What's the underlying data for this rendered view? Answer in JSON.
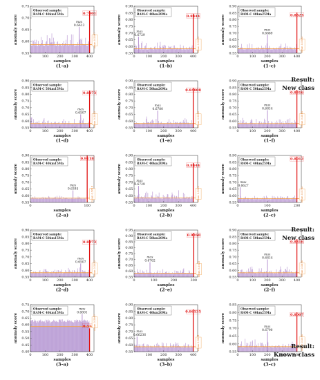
{
  "chart_data": [
    {
      "id": "1a",
      "caption": "(1–a)",
      "type": "bar",
      "sample": "RAM-C 40km15Ma",
      "observed_label": "Observed sample:",
      "ylabel": "anomaly score",
      "xlabel": "samples",
      "ylim": [
        0.55,
        0.75
      ],
      "yticks": [
        0.55,
        0.6,
        0.65,
        0.7,
        0.75
      ],
      "xlim": [
        0,
        430
      ],
      "xticks": [
        0,
        100,
        200,
        300,
        400
      ],
      "mean": 0.5867,
      "mean_label": "mean 0.5867",
      "max": 0.6613,
      "max_x": 330,
      "max_label": "max",
      "max_value_label": "0.6613",
      "obs": 0.7301,
      "obs_x": 400,
      "obs_label": "0.7301",
      "n": 400,
      "bar_hi": 0.64
    },
    {
      "id": "1b",
      "caption": "(1–b)",
      "type": "bar",
      "sample": "RAM-C 40km20Ma",
      "observed_label": "Observed sample:",
      "ylabel": "anomaly score",
      "xlabel": "samples",
      "ylim": [
        0.55,
        0.9
      ],
      "yticks": [
        0.55,
        0.6,
        0.65,
        0.7,
        0.75,
        0.8,
        0.85,
        0.9
      ],
      "xlim": [
        0,
        430
      ],
      "xticks": [
        0,
        100,
        200,
        300,
        400
      ],
      "mean": 0.5829,
      "mean_label": "mean 0.5829",
      "max": 0.6729,
      "max_x": 30,
      "max_label": "max",
      "max_value_label": "0.6729",
      "obs": 0.8444,
      "obs_x": 400,
      "obs_label": "0.8444",
      "n": 400,
      "bar_hi": 0.64
    },
    {
      "id": "1c",
      "caption": "(1–c)",
      "type": "bar",
      "sample": "RAM-C 40km25Ma",
      "observed_label": "Observed sample:",
      "ylabel": "anomaly score",
      "xlabel": "samples",
      "ylim": [
        0.55,
        0.9
      ],
      "yticks": [
        0.55,
        0.6,
        0.65,
        0.7,
        0.75,
        0.8,
        0.85,
        0.9
      ],
      "xlim": [
        0,
        430
      ],
      "xticks": [
        0,
        100,
        200,
        300,
        400
      ],
      "mean": 0.5833,
      "mean_label": "mean 0.5833",
      "max": 0.6869,
      "max_x": 200,
      "max_label": "max",
      "max_value_label": "0.6869",
      "obs": 0.8523,
      "obs_x": 400,
      "obs_label": "0.8523",
      "n": 400,
      "bar_hi": 0.63
    },
    {
      "id": "1d",
      "caption": "(1–d)",
      "type": "bar",
      "sample": "RAM-C 50km15Ma",
      "observed_label": "Observed sample:",
      "ylabel": "anomaly score",
      "xlabel": "samples",
      "ylim": [
        0.55,
        0.9
      ],
      "yticks": [
        0.55,
        0.6,
        0.65,
        0.7,
        0.75,
        0.8,
        0.85,
        0.9
      ],
      "xlim": [
        0,
        430
      ],
      "xticks": [
        0,
        100,
        200,
        300,
        400
      ],
      "mean": 0.5822,
      "mean_label": "mean 0.5822",
      "max": 0.6507,
      "max_x": 340,
      "max_label": "max",
      "max_value_label": "0.6507",
      "obs": 0.8273,
      "obs_x": 400,
      "obs_label": "0.8273",
      "n": 400,
      "bar_hi": 0.63
    },
    {
      "id": "1e",
      "caption": "(1–e)",
      "type": "bar",
      "sample": "RAM-C 50km20Ma",
      "observed_label": "Observed sample:",
      "ylabel": "anomaly score",
      "xlabel": "samples",
      "ylim": [
        0.55,
        0.9
      ],
      "yticks": [
        0.55,
        0.6,
        0.65,
        0.7,
        0.75,
        0.8,
        0.85,
        0.9
      ],
      "xlim": [
        0,
        430
      ],
      "xticks": [
        0,
        100,
        200,
        300,
        400
      ],
      "mean": 0.5822,
      "mean_label": "mean 0.5822",
      "max": 0.678,
      "max_x": 160,
      "max_label": "max",
      "max_value_label": "0.6780",
      "obs": 0.84808,
      "obs_x": 400,
      "obs_label": "0.84808",
      "n": 400,
      "bar_hi": 0.63
    },
    {
      "id": "1f",
      "caption": "(1–f)",
      "type": "bar",
      "sample": "RAM-C 50km25Ma",
      "observed_label": "Observed sample:",
      "ylabel": "anomaly score",
      "xlabel": "samples",
      "ylim": [
        0.55,
        0.9
      ],
      "yticks": [
        0.55,
        0.6,
        0.65,
        0.7,
        0.75,
        0.8,
        0.85,
        0.9
      ],
      "xlim": [
        0,
        430
      ],
      "xticks": [
        0,
        100,
        200,
        300,
        400
      ],
      "mean": 0.5818,
      "mean_label": "mean 0.5818",
      "max": 0.6814,
      "max_x": 200,
      "max_label": "max",
      "max_value_label": "0.6814",
      "obs": 0.8316,
      "obs_x": 400,
      "obs_label": "0.8316",
      "n": 400,
      "bar_hi": 0.63
    },
    {
      "id": "2a",
      "caption": "(2–a)",
      "type": "bar",
      "sample": "RAM-C 40km15Ma",
      "observed_label": "Observed sample:",
      "ylabel": "anomaly score",
      "xlabel": "samples",
      "ylim": [
        0.55,
        0.9
      ],
      "yticks": [
        0.55,
        0.6,
        0.65,
        0.7,
        0.75,
        0.8,
        0.85,
        0.9
      ],
      "xlim": [
        0,
        112
      ],
      "xticks": [
        0,
        100
      ],
      "mean": 0.5818,
      "mean_label": "mean 0.5818",
      "max": 0.6395,
      "max_x": 75,
      "max_label": "max",
      "max_value_label": "0.6395",
      "obs": 0.9118,
      "obs_x": 100,
      "obs_label": "0.9118",
      "n": 100,
      "bar_hi": 0.6
    },
    {
      "id": "2b",
      "caption": "(2–b)",
      "type": "bar",
      "sample": "RAM-C 40km20Ma",
      "observed_label": "Observed sample:",
      "ylabel": "anomaly score",
      "xlabel": "samples",
      "ylim": [
        0.55,
        0.9
      ],
      "yticks": [
        0.55,
        0.6,
        0.65,
        0.7,
        0.75,
        0.8,
        0.85,
        0.9
      ],
      "xlim": [
        0,
        430
      ],
      "xticks": [
        0,
        100,
        200,
        300,
        400
      ],
      "mean": 0.5829,
      "mean_label": "mean 0.5829",
      "max": 0.6729,
      "max_x": 30,
      "max_label": "max",
      "max_value_label": "0.6729",
      "obs": 0.8444,
      "obs_x": 400,
      "obs_label": "0.8444",
      "n": 400,
      "bar_hi": 0.64
    },
    {
      "id": "2c",
      "caption": "(2–c)",
      "type": "bar",
      "sample": "RAM-C 40km25Ma",
      "observed_label": "Observed sample:",
      "ylabel": "anomaly score",
      "xlabel": "samples",
      "ylim": [
        0.55,
        0.9
      ],
      "yticks": [
        0.55,
        0.6,
        0.65,
        0.7,
        0.75,
        0.8,
        0.85,
        0.9
      ],
      "xlim": [
        0,
        215
      ],
      "xticks": [
        0,
        100,
        200
      ],
      "mean": 0.5782,
      "mean_label": "mean 0.5782",
      "max": 0.6627,
      "max_x": 8,
      "max_label": "max",
      "max_value_label": "0.6627",
      "obs": 0.8912,
      "obs_x": 200,
      "obs_label": "0.8912",
      "n": 200,
      "bar_hi": 0.6
    },
    {
      "id": "2d",
      "caption": "(2–d)",
      "type": "bar",
      "sample": "RAM-C 50km15Ma",
      "observed_label": "Observed sample:",
      "ylabel": "anomaly score",
      "xlabel": "samples",
      "ylim": [
        0.55,
        0.9
      ],
      "yticks": [
        0.55,
        0.6,
        0.65,
        0.7,
        0.75,
        0.8,
        0.85,
        0.9
      ],
      "xlim": [
        0,
        430
      ],
      "xticks": [
        0,
        100,
        200,
        300,
        400
      ],
      "mean": 0.5822,
      "mean_label": "mean 0.5822",
      "max": 0.6507,
      "max_x": 340,
      "max_label": "max",
      "max_value_label": "0.6507",
      "obs": 0.8273,
      "obs_x": 400,
      "obs_label": "0.8273",
      "n": 400,
      "bar_hi": 0.63
    },
    {
      "id": "2e",
      "caption": "(2–e)",
      "type": "bar",
      "sample": "RAM-C 50km20Ma",
      "observed_label": "Observed sample:",
      "ylabel": "anomaly score",
      "xlabel": "samples",
      "ylim": [
        0.55,
        0.95
      ],
      "yticks": [
        0.55,
        0.6,
        0.65,
        0.7,
        0.75,
        0.8,
        0.85,
        0.9,
        0.95
      ],
      "xlim": [
        0,
        320
      ],
      "xticks": [
        0,
        100,
        200,
        300
      ],
      "mean": 0.5822,
      "mean_label": "mean 0.5822",
      "max": 0.6762,
      "max_x": 80,
      "max_label": "max",
      "max_value_label": "0.6762",
      "obs": 0.926,
      "obs_x": 300,
      "obs_label": "0.9260",
      "n": 300,
      "bar_hi": 0.63
    },
    {
      "id": "2f",
      "caption": "(2–f)",
      "type": "bar",
      "sample": "RAM-C 50km25Ma",
      "observed_label": "Observed sample:",
      "ylabel": "anomaly score",
      "xlabel": "samples",
      "ylim": [
        0.55,
        0.9
      ],
      "yticks": [
        0.55,
        0.6,
        0.65,
        0.7,
        0.75,
        0.8,
        0.85,
        0.9
      ],
      "xlim": [
        0,
        430
      ],
      "xticks": [
        0,
        100,
        200,
        300,
        400
      ],
      "mean": 0.5818,
      "mean_label": "mean 0.5818",
      "max": 0.6814,
      "max_x": 200,
      "max_label": "max",
      "max_value_label": "0.6814",
      "obs": 0.8316,
      "obs_x": 400,
      "obs_label": "0.8316",
      "n": 400,
      "bar_hi": 0.63
    },
    {
      "id": "3a",
      "caption": "(3–a)",
      "type": "bar",
      "sample": "RAM-C 40km15Ma",
      "observed_label": "Observed sample:",
      "ylabel": "anomaly score",
      "xlabel": "samples",
      "ylim": [
        0.4,
        0.75
      ],
      "yticks": [
        0.4,
        0.45,
        0.5,
        0.55,
        0.6,
        0.65,
        0.7,
        0.75
      ],
      "xlim": [
        0,
        430
      ],
      "xticks": [
        0,
        100,
        200,
        300,
        400
      ],
      "mean": 0.5867,
      "mean_label": "mean 0.5867",
      "max": 0.6801,
      "max_x": 350,
      "max_label": "max",
      "max_value_label": "0.6801",
      "obs": 0.5734,
      "obs_x": 400,
      "obs_label": "0.5734",
      "n": 400,
      "bar_hi": 0.64
    },
    {
      "id": "3b",
      "caption": "(3–b)",
      "type": "bar",
      "sample": "RAM-C 40km20Ma",
      "observed_label": "Observed sample:",
      "ylabel": "anomaly score",
      "xlabel": "samples",
      "ylim": [
        0.55,
        0.9
      ],
      "yticks": [
        0.55,
        0.6,
        0.65,
        0.7,
        0.75,
        0.8,
        0.85,
        0.9
      ],
      "xlim": [
        0,
        430
      ],
      "xticks": [
        100,
        200,
        300,
        400
      ],
      "mean": 0.5861,
      "mean_label": "mean 0.5861",
      "max": 0.66236,
      "max_x": 20,
      "max_label": "max",
      "max_value_label": "0.66236",
      "obs": 0.86535,
      "obs_x": 400,
      "obs_label": "0.86535",
      "n": 400,
      "bar_hi": 0.63
    },
    {
      "id": "3c",
      "caption": "(3–c)",
      "type": "bar",
      "sample": "RAM-C 40km25Ma",
      "observed_label": "Observed sample:",
      "ylabel": "anomaly score",
      "xlabel": "samples",
      "ylim": [
        0.55,
        0.85
      ],
      "yticks": [
        0.55,
        0.6,
        0.65,
        0.7,
        0.75,
        0.8,
        0.85
      ],
      "xlim": [
        0,
        430
      ],
      "xticks": [
        0,
        100,
        200,
        300,
        400
      ],
      "mean": 0.5818,
      "mean_label": "mean 0.5818",
      "max": 0.679,
      "max_x": 200,
      "max_label": "max",
      "max_value_label": "0.6790",
      "obs": 0.8007,
      "obs_x": 400,
      "obs_label": "0.8007",
      "n": 400,
      "bar_hi": 0.63
    }
  ],
  "results": [
    {
      "id": "r1",
      "line1": "Result:",
      "line2": "New class"
    },
    {
      "id": "r2",
      "line1": "Result:",
      "line2": "New class"
    },
    {
      "id": "r3",
      "line1": "Result:",
      "line2": "Known class"
    }
  ],
  "colors": {
    "bars": "#b48fcf",
    "bars_fill_3a": "#b79ad6",
    "mean_line": "#f0a04b",
    "observed": "#e01010",
    "axis": "#222222"
  }
}
